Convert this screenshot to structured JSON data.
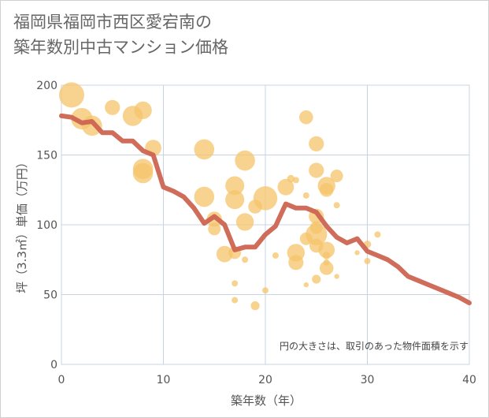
{
  "title_line1": "福岡県福岡市西区愛宕南の",
  "title_line2": "築年数別中古マンション価格",
  "chart_data": {
    "type": "scatter",
    "xlabel": "築年数（年）",
    "ylabel": "坪（3.3㎡）単価（万円）",
    "note": "円の大きさは、取引のあった物件面積を示す",
    "xlim": [
      0,
      40
    ],
    "ylim": [
      0,
      200
    ],
    "xticks": [
      "0",
      "10",
      "20",
      "30",
      "40"
    ],
    "yticks": [
      "0",
      "50",
      "100",
      "150",
      "200"
    ],
    "grid": true,
    "bubble_color": "#f5c46a",
    "line_color": "#cd6451",
    "bubbles": [
      {
        "x": 1,
        "y": 193,
        "s": 2.0
      },
      {
        "x": 2,
        "y": 176,
        "s": 1.7
      },
      {
        "x": 3,
        "y": 171,
        "s": 1.6
      },
      {
        "x": 5,
        "y": 184,
        "s": 1.2
      },
      {
        "x": 7,
        "y": 178,
        "s": 1.6
      },
      {
        "x": 8,
        "y": 182,
        "s": 1.4
      },
      {
        "x": 8,
        "y": 140,
        "s": 1.6
      },
      {
        "x": 8,
        "y": 137,
        "s": 1.6
      },
      {
        "x": 9,
        "y": 155,
        "s": 1.3
      },
      {
        "x": 14,
        "y": 154,
        "s": 1.6
      },
      {
        "x": 14,
        "y": 120,
        "s": 1.6
      },
      {
        "x": 15,
        "y": 104,
        "s": 1.2
      },
      {
        "x": 15,
        "y": 97,
        "s": 1.0
      },
      {
        "x": 16,
        "y": 79,
        "s": 1.3
      },
      {
        "x": 17,
        "y": 128,
        "s": 1.5
      },
      {
        "x": 17,
        "y": 118,
        "s": 1.5
      },
      {
        "x": 17,
        "y": 80,
        "s": 1.0
      },
      {
        "x": 17,
        "y": 58,
        "s": 0.5
      },
      {
        "x": 17,
        "y": 46,
        "s": 0.5
      },
      {
        "x": 18,
        "y": 146,
        "s": 1.6
      },
      {
        "x": 18,
        "y": 102,
        "s": 1.4
      },
      {
        "x": 18,
        "y": 75,
        "s": 0.5
      },
      {
        "x": 19,
        "y": 113,
        "s": 1.1
      },
      {
        "x": 19,
        "y": 42,
        "s": 0.7
      },
      {
        "x": 20,
        "y": 119,
        "s": 1.9
      },
      {
        "x": 20,
        "y": 53,
        "s": 0.5
      },
      {
        "x": 21,
        "y": 78,
        "s": 0.5
      },
      {
        "x": 22,
        "y": 127,
        "s": 1.3
      },
      {
        "x": 22.5,
        "y": 133,
        "s": 0.6
      },
      {
        "x": 23,
        "y": 80,
        "s": 1.4
      },
      {
        "x": 23,
        "y": 73,
        "s": 1.2
      },
      {
        "x": 23,
        "y": 132,
        "s": 0.5
      },
      {
        "x": 24,
        "y": 177,
        "s": 1.1
      },
      {
        "x": 24,
        "y": 121,
        "s": 0.5
      },
      {
        "x": 24,
        "y": 57,
        "s": 0.4
      },
      {
        "x": 24,
        "y": 90,
        "s": 1.0
      },
      {
        "x": 25,
        "y": 158,
        "s": 1.2
      },
      {
        "x": 25,
        "y": 139,
        "s": 1.2
      },
      {
        "x": 25,
        "y": 106,
        "s": 1.2
      },
      {
        "x": 25,
        "y": 98,
        "s": 1.0
      },
      {
        "x": 25,
        "y": 93,
        "s": 1.7
      },
      {
        "x": 25,
        "y": 85,
        "s": 1.1
      },
      {
        "x": 25,
        "y": 61,
        "s": 0.7
      },
      {
        "x": 26,
        "y": 128,
        "s": 1.4
      },
      {
        "x": 26,
        "y": 125,
        "s": 1.1
      },
      {
        "x": 26,
        "y": 82,
        "s": 1.3
      },
      {
        "x": 26,
        "y": 78,
        "s": 0.6
      },
      {
        "x": 26,
        "y": 73,
        "s": 0.5
      },
      {
        "x": 26,
        "y": 69,
        "s": 1.1
      },
      {
        "x": 27,
        "y": 135,
        "s": 1.0
      },
      {
        "x": 27,
        "y": 114,
        "s": 0.5
      },
      {
        "x": 27,
        "y": 63,
        "s": 0.4
      },
      {
        "x": 29,
        "y": 80,
        "s": 0.4
      },
      {
        "x": 30,
        "y": 86,
        "s": 0.6
      },
      {
        "x": 30,
        "y": 74,
        "s": 0.5
      },
      {
        "x": 31,
        "y": 93,
        "s": 0.5
      }
    ],
    "line": {
      "x": [
        0,
        1,
        2,
        3,
        4,
        5,
        6,
        7,
        8,
        9,
        10,
        11,
        12,
        13,
        14,
        15,
        16,
        17,
        18,
        19,
        20,
        21,
        22,
        23,
        24,
        25,
        26,
        27,
        28,
        29,
        30,
        31,
        32,
        33,
        34,
        35,
        36,
        37,
        38,
        39,
        40
      ],
      "y": [
        178,
        177,
        173,
        174,
        166,
        166,
        160,
        160,
        153,
        150,
        127,
        124,
        120,
        112,
        101,
        106,
        100,
        82,
        84,
        84,
        93,
        99,
        115,
        112,
        112,
        109,
        99,
        91,
        87,
        90,
        81,
        78,
        75,
        70,
        63,
        60,
        57,
        54,
        51,
        48,
        44
      ]
    }
  }
}
